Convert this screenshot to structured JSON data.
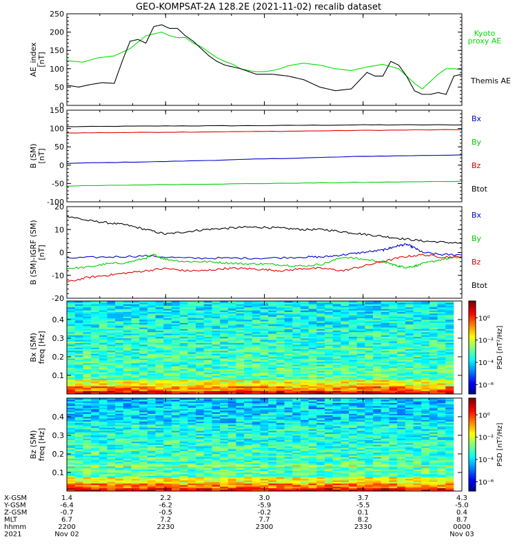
{
  "title": "GEO-KOMPSAT-2A 128.2E (2021-11-02) recalib dataset",
  "chart_data": [
    {
      "type": "line",
      "ylabel": "AE_index [nT]",
      "ylim": [
        0,
        250
      ],
      "yticks": [
        0,
        50,
        100,
        150,
        200,
        250
      ],
      "series": [
        {
          "name": "Kyoto proxy AE",
          "color": "#00dd00",
          "x": [
            0,
            4,
            8,
            12,
            16,
            20,
            24,
            26,
            28,
            30,
            32,
            34,
            36,
            38,
            40,
            42,
            44,
            46,
            48,
            50,
            52,
            54,
            56,
            58,
            60,
            64,
            68,
            72,
            76,
            80,
            84,
            88,
            90,
            92,
            94,
            96,
            98,
            100
          ],
          "values": [
            122,
            118,
            130,
            135,
            155,
            190,
            200,
            190,
            185,
            185,
            170,
            160,
            145,
            130,
            120,
            112,
            100,
            95,
            92,
            92,
            95,
            100,
            108,
            112,
            115,
            110,
            100,
            95,
            105,
            112,
            100,
            60,
            45,
            65,
            85,
            100,
            100,
            97
          ]
        },
        {
          "name": "Themis AE",
          "color": "#000000",
          "x": [
            0,
            3,
            6,
            9,
            12,
            14,
            16,
            18,
            20,
            22,
            24,
            26,
            28,
            30,
            32,
            34,
            36,
            38,
            40,
            44,
            48,
            52,
            56,
            60,
            64,
            68,
            72,
            76,
            78,
            80,
            82,
            84,
            86,
            88,
            90,
            92,
            94,
            96,
            98,
            100
          ],
          "values": [
            55,
            50,
            57,
            62,
            60,
            120,
            175,
            180,
            170,
            215,
            220,
            210,
            210,
            190,
            175,
            155,
            135,
            120,
            110,
            100,
            85,
            85,
            80,
            70,
            50,
            40,
            45,
            90,
            80,
            80,
            120,
            110,
            80,
            40,
            30,
            30,
            35,
            30,
            80,
            85
          ]
        }
      ],
      "legend": [
        "Kyoto proxy AE",
        "Themis AE"
      ]
    },
    {
      "type": "line",
      "ylabel": "B (SM) [nT]",
      "ylim": [
        -100,
        150
      ],
      "yticks": [
        -100,
        -50,
        0,
        50,
        100,
        150
      ],
      "series": [
        {
          "name": "Btot",
          "color": "#000000",
          "x": [
            0,
            25,
            50,
            75,
            100
          ],
          "values": [
            105,
            107,
            108,
            110,
            110
          ]
        },
        {
          "name": "Bz",
          "color": "#dd0000",
          "x": [
            0,
            25,
            50,
            75,
            100
          ],
          "values": [
            88,
            90,
            92,
            95,
            97
          ]
        },
        {
          "name": "By",
          "color": "#0000cc",
          "x": [
            0,
            25,
            50,
            75,
            100
          ],
          "values": [
            5,
            10,
            17,
            24,
            28
          ]
        },
        {
          "name": "Bx",
          "color": "#00cc00",
          "x": [
            0,
            25,
            50,
            75,
            100
          ],
          "values": [
            -57,
            -53,
            -50,
            -47,
            -44
          ]
        }
      ],
      "legend": [
        "Bx",
        "By",
        "Bz",
        "Btot"
      ]
    },
    {
      "type": "line",
      "ylabel": "B (SM)-IGRF (SM) [nT]",
      "ylim": [
        -20,
        20
      ],
      "yticks": [
        -20,
        -10,
        0,
        10,
        20
      ],
      "series": [
        {
          "name": "Btot",
          "color": "#000000",
          "x": [
            0,
            5,
            10,
            15,
            20,
            25,
            30,
            35,
            40,
            45,
            50,
            55,
            60,
            65,
            70,
            75,
            80,
            85,
            90,
            95,
            100
          ],
          "values": [
            16,
            14,
            13,
            12,
            10,
            8,
            9,
            10,
            10.5,
            11,
            11,
            10.5,
            10,
            10,
            9,
            8,
            7,
            6,
            5,
            4.5,
            4
          ]
        },
        {
          "name": "By",
          "color": "#0000cc",
          "x": [
            0,
            10,
            20,
            30,
            40,
            50,
            60,
            65,
            70,
            75,
            80,
            82,
            84,
            86,
            88,
            90,
            95,
            100
          ],
          "values": [
            -2.5,
            -2,
            -1.5,
            -2.5,
            -2.5,
            -2.5,
            -2,
            -2,
            -1,
            0,
            1,
            2,
            3,
            3.5,
            2,
            0,
            -1,
            -1
          ]
        },
        {
          "name": "Bx",
          "color": "#00cc00",
          "x": [
            0,
            5,
            10,
            15,
            20,
            22,
            25,
            30,
            35,
            40,
            45,
            50,
            55,
            60,
            65,
            70,
            75,
            80,
            82,
            84,
            86,
            88,
            90,
            95,
            100
          ],
          "values": [
            -7,
            -6.5,
            -5,
            -4.5,
            -2.5,
            -1,
            -3,
            -4,
            -4,
            -4.5,
            -5,
            -5,
            -5.5,
            -6,
            -5,
            -2,
            -3,
            -4,
            -5,
            -6,
            -6.5,
            -6,
            -5,
            -3,
            -2
          ]
        },
        {
          "name": "Bz",
          "color": "#dd0000",
          "x": [
            0,
            5,
            10,
            15,
            20,
            25,
            30,
            35,
            40,
            45,
            50,
            55,
            60,
            65,
            70,
            75,
            80,
            85,
            90,
            95,
            100
          ],
          "values": [
            -13,
            -11,
            -10,
            -9,
            -8,
            -7,
            -8,
            -8,
            -7,
            -7,
            -7.5,
            -8,
            -7,
            -7,
            -8,
            -6,
            -4,
            -2,
            -1,
            -2,
            -2
          ]
        }
      ],
      "legend": [
        "Bx",
        "By",
        "Bz",
        "Btot"
      ]
    },
    {
      "type": "heatmap",
      "ylabel": "Bx (SM) freq [Hz]",
      "yticks": [
        0.1,
        0.2,
        0.3,
        0.4
      ],
      "ylim": [
        0,
        0.5
      ],
      "colorbar_label": "PSD [nT²/Hz]",
      "colorbar_ticks": [
        "10⁰",
        "10⁻²",
        "10⁻⁴",
        "10⁻⁶"
      ]
    },
    {
      "type": "heatmap",
      "ylabel": "Bz (SM) freq [Hz]",
      "yticks": [
        0.1,
        0.2,
        0.3,
        0.4
      ],
      "ylim": [
        0,
        0.5
      ],
      "colorbar_label": "PSD [nT²/Hz]",
      "colorbar_ticks": [
        "10⁰",
        "10⁻²",
        "10⁻⁴",
        "10⁻⁶"
      ]
    }
  ],
  "ephemeris": {
    "labels": [
      "X-GSM",
      "Y-GSM",
      "Z-GSM",
      "MLT",
      "hhmm",
      "2021"
    ],
    "columns": [
      [
        "1.4",
        "-6.4",
        "-0.7",
        "6.7",
        "2200",
        "Nov 02"
      ],
      [
        "2.2",
        "-6.2",
        "-0.5",
        "7.2",
        "2230",
        ""
      ],
      [
        "3.0",
        "-5.9",
        "-0.2",
        "7.7",
        "2300",
        ""
      ],
      [
        "3.7",
        "-5.5",
        "0.1",
        "8.2",
        "2330",
        ""
      ],
      [
        "4.3",
        "-5.0",
        "0.4",
        "8.7",
        "0000",
        "Nov 03"
      ]
    ]
  }
}
